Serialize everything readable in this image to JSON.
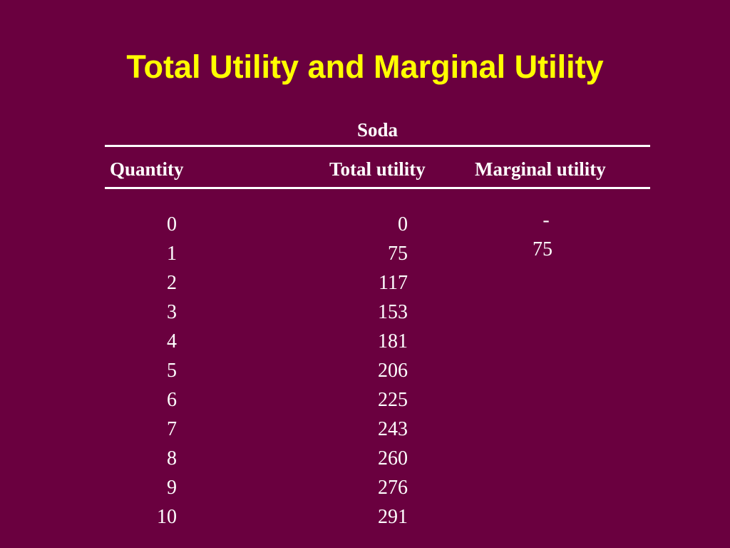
{
  "slide": {
    "title": "Total Utility and Marginal Utility",
    "background_color": "#6a003f",
    "title_color": "#ffff00",
    "text_color": "#ffffff"
  },
  "table": {
    "group_label": "Soda",
    "headers": {
      "quantity": "Quantity",
      "total_utility": "Total utility",
      "marginal_utility": "Marginal utility"
    },
    "quantity": [
      "0",
      "1",
      "2",
      "3",
      "4",
      "5",
      "6",
      "7",
      "8",
      "9",
      "10"
    ],
    "total_utility": [
      "0",
      "75",
      "117",
      "153",
      "181",
      "206",
      "225",
      "243",
      "260",
      "276",
      "291"
    ],
    "marginal_utility": {
      "first": "-",
      "second": "75"
    }
  }
}
